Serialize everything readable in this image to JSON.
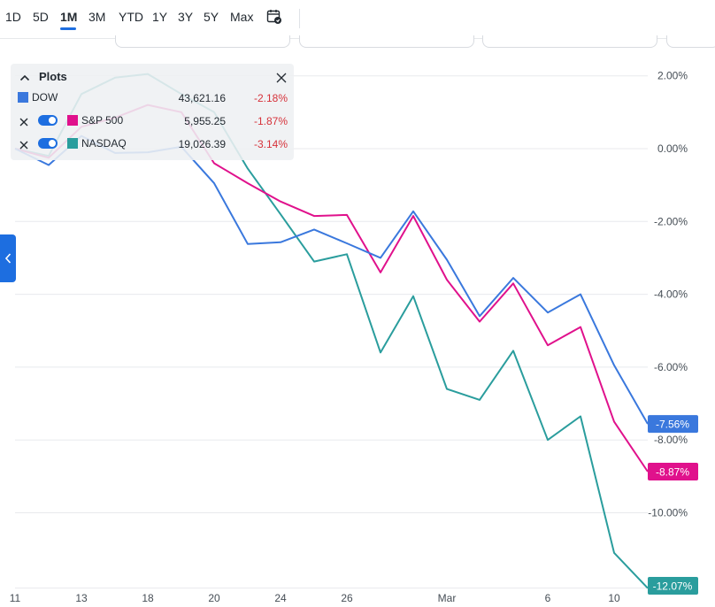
{
  "range_bar": {
    "buttons": [
      {
        "label": "1D",
        "active": false
      },
      {
        "label": "5D",
        "active": false
      },
      {
        "label": "1M",
        "active": true
      },
      {
        "label": "3M",
        "active": false
      },
      {
        "label": "YTD",
        "active": false
      },
      {
        "label": "1Y",
        "active": false
      },
      {
        "label": "3Y",
        "active": false
      },
      {
        "label": "5Y",
        "active": false
      },
      {
        "label": "Max",
        "active": false
      }
    ],
    "calendar_icon": "calendar-compare-icon"
  },
  "plots_panel": {
    "title": "Plots",
    "collapse_icon": "chevron-up-icon",
    "close_icon": "close-icon",
    "rows": [
      {
        "name": "DOW",
        "value": "43,621.16",
        "change": "-2.18%",
        "color": "#3a78dd",
        "removable": false
      },
      {
        "name": "S&P 500",
        "value": "5,955.25",
        "change": "-1.87%",
        "color": "#e0118c",
        "removable": true
      },
      {
        "name": "NASDAQ",
        "value": "19,026.39",
        "change": "-3.14%",
        "color": "#2a9d9d",
        "removable": true
      }
    ]
  },
  "side_tab": {
    "icon": "chevron-left-icon"
  },
  "colors": {
    "accent": "#1d6ee0",
    "negative": "#d6323a",
    "grid": "#e6e8eb"
  },
  "chart_data": {
    "type": "line",
    "x": [
      "11",
      "12",
      "13",
      "14",
      "18",
      "19",
      "20",
      "21",
      "24",
      "25",
      "26",
      "27",
      "28",
      "Mar 3",
      "4",
      "5",
      "6",
      "7",
      "10",
      "11"
    ],
    "x_tick_labels": [
      "11",
      "13",
      "18",
      "20",
      "24",
      "26",
      "Mar",
      "6",
      "10"
    ],
    "y_tick_labels": [
      "2.00%",
      "0.00%",
      "-2.00%",
      "-4.00%",
      "-6.00%",
      "-8.00%",
      "-10.00%"
    ],
    "y_unit": "%",
    "ylim": [
      -12.07,
      2.5
    ],
    "grid": true,
    "series": [
      {
        "name": "DOW",
        "color": "#3a78dd",
        "last_label": "-7.56%",
        "values": [
          0,
          -0.45,
          0.35,
          -0.12,
          -0.1,
          0.05,
          -0.95,
          -2.62,
          -2.57,
          -2.22,
          -2.6,
          -3.0,
          -1.72,
          -3.05,
          -4.6,
          -3.55,
          -4.5,
          -4.0,
          -5.95,
          -7.56
        ]
      },
      {
        "name": "S&P 500",
        "color": "#e0118c",
        "last_label": "-8.87%",
        "values": [
          0,
          -0.25,
          0.6,
          0.85,
          1.2,
          1.0,
          -0.4,
          -0.95,
          -1.45,
          -1.85,
          -1.82,
          -3.4,
          -1.85,
          -3.6,
          -4.75,
          -3.7,
          -5.4,
          -4.9,
          -7.5,
          -8.87
        ]
      },
      {
        "name": "NASDAQ",
        "color": "#2a9d9d",
        "last_label": "-12.07%",
        "values": [
          0,
          -0.2,
          1.5,
          1.95,
          2.05,
          1.5,
          1.0,
          -0.55,
          -1.8,
          -3.1,
          -2.9,
          -5.6,
          -4.05,
          -6.6,
          -6.9,
          -5.55,
          -8.0,
          -7.35,
          -11.1,
          -12.07
        ]
      }
    ]
  }
}
